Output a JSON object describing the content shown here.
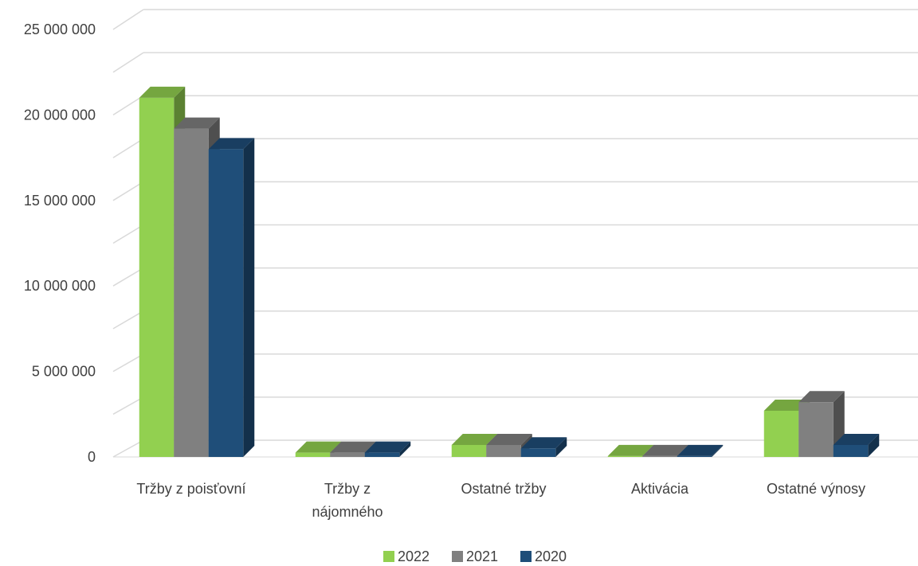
{
  "chart_data": {
    "type": "bar",
    "title": "",
    "xlabel": "",
    "ylabel": "",
    "categories": [
      [
        "Tržby z poisťovní"
      ],
      [
        "Tržby z",
        "nájomného"
      ],
      [
        "Ostatné tržby"
      ],
      [
        "Aktivácia"
      ],
      [
        "Ostatné výnosy"
      ]
    ],
    "series": [
      {
        "name": "2022",
        "color": "#92D050",
        "values": [
          21000000,
          250000,
          700000,
          50000,
          2700000
        ]
      },
      {
        "name": "2021",
        "color": "#808080",
        "values": [
          19200000,
          250000,
          700000,
          50000,
          3200000
        ]
      },
      {
        "name": "2020",
        "color": "#1F4E79",
        "values": [
          18000000,
          250000,
          500000,
          50000,
          700000
        ]
      }
    ],
    "ylim": [
      0,
      25000000
    ],
    "ytick_values": [
      0,
      5000000,
      10000000,
      15000000,
      20000000,
      25000000
    ],
    "ytick_labels": [
      "0",
      "5 000 000",
      "10 000 000",
      "15 000 000",
      "20 000 000",
      "25 000 000"
    ],
    "grid": true,
    "legend_position": "bottom",
    "style": "3d-column"
  }
}
